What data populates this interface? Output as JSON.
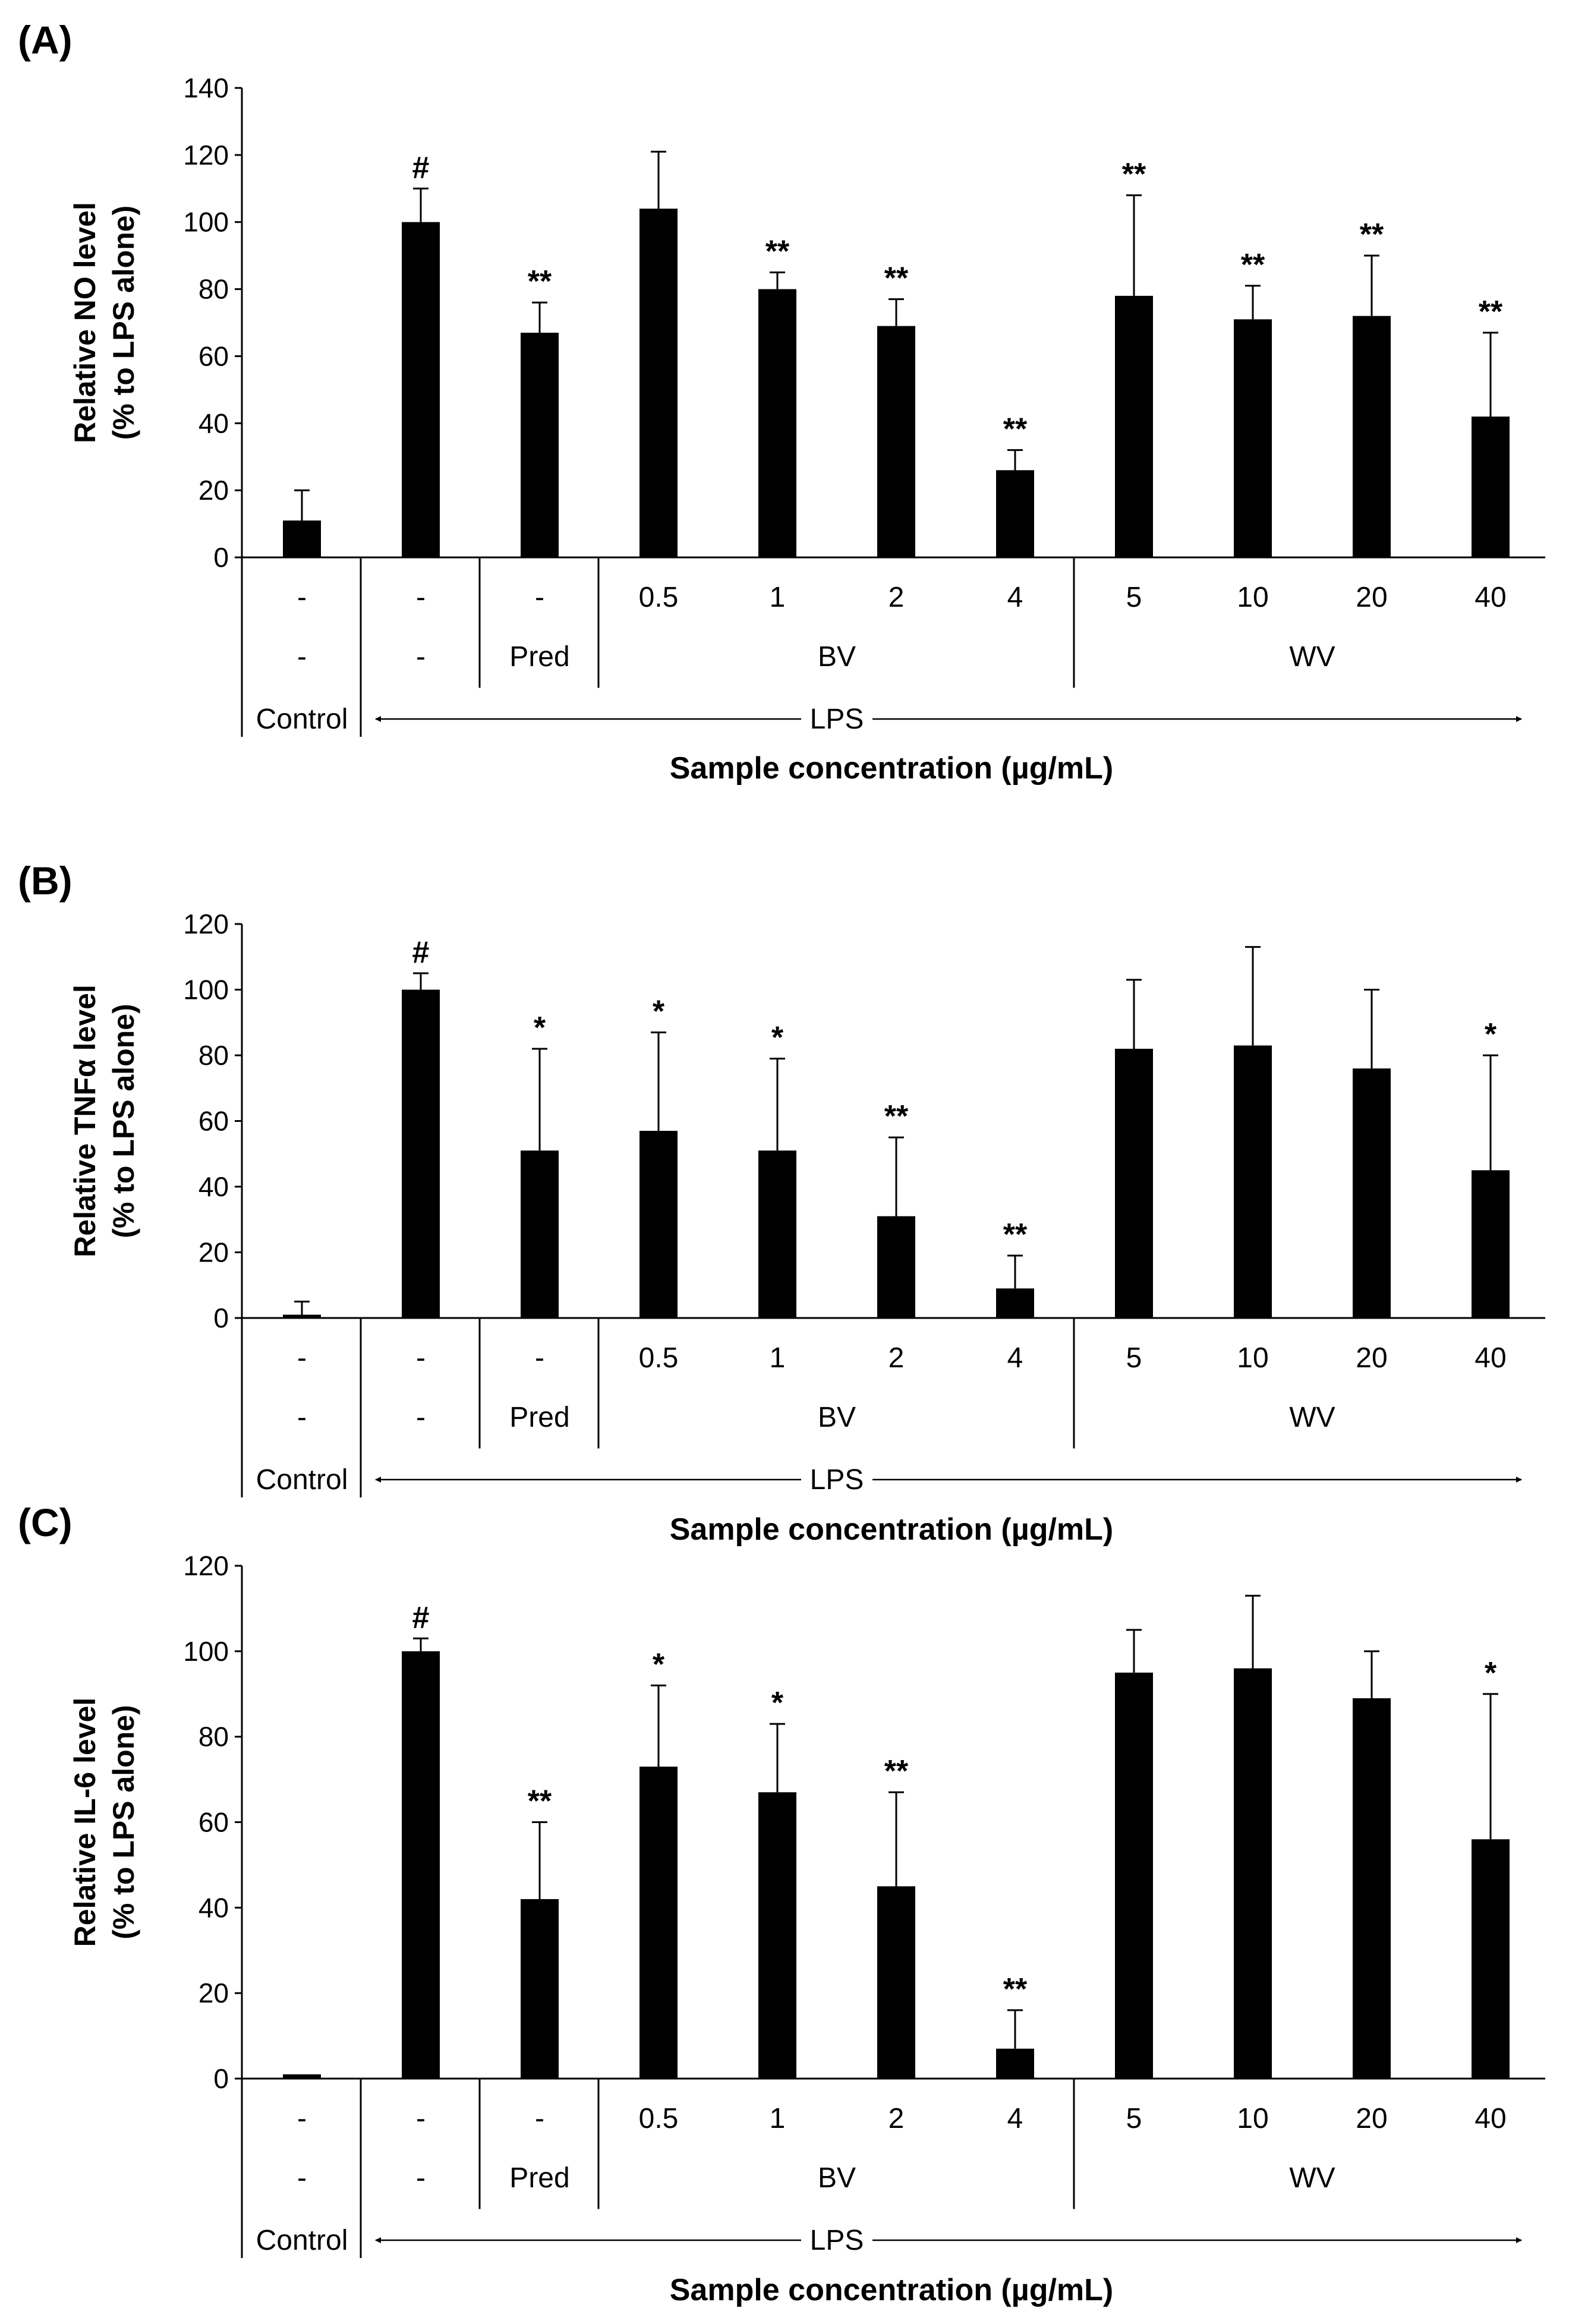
{
  "chart_data": [
    {
      "type": "bar",
      "panel_label": "(A)",
      "ylabel_line1": "Relative NO level",
      "ylabel_line2": "(% to LPS alone)",
      "ylim": [
        0,
        140
      ],
      "yticks": [
        0,
        20,
        40,
        60,
        80,
        100,
        120,
        140
      ],
      "categories": [
        "-",
        "-",
        "-",
        "0.5",
        "1",
        "2",
        "4",
        "5",
        "10",
        "20",
        "40"
      ],
      "values": [
        11,
        100,
        67,
        104,
        80,
        69,
        26,
        78,
        71,
        72,
        42
      ],
      "errors": [
        9,
        10,
        9,
        17,
        5,
        8,
        6,
        30,
        10,
        18,
        25
      ],
      "annotations": [
        "",
        "#",
        "**",
        "",
        "**",
        "**",
        "**",
        "**",
        "**",
        "**",
        "**"
      ],
      "xlabel": "Sample concentration (µg/mL)"
    },
    {
      "type": "bar",
      "panel_label": "(B)",
      "ylabel_line1": "Relative TNFα level",
      "ylabel_line2": "(% to LPS alone)",
      "ylim": [
        0,
        120
      ],
      "yticks": [
        0,
        20,
        40,
        60,
        80,
        100,
        120
      ],
      "categories": [
        "-",
        "-",
        "-",
        "0.5",
        "1",
        "2",
        "4",
        "5",
        "10",
        "20",
        "40"
      ],
      "values": [
        1,
        100,
        51,
        57,
        51,
        31,
        9,
        82,
        83,
        76,
        45
      ],
      "errors": [
        4,
        5,
        31,
        30,
        28,
        24,
        10,
        21,
        30,
        24,
        35
      ],
      "annotations": [
        "",
        "#",
        "*",
        "*",
        "*",
        "**",
        "**",
        "",
        "",
        "",
        "*"
      ],
      "xlabel": "Sample concentration (µg/mL)"
    },
    {
      "type": "bar",
      "panel_label": "(C)",
      "ylabel_line1": "Relative IL-6 level",
      "ylabel_line2": "(% to LPS alone)",
      "ylim": [
        0,
        120
      ],
      "yticks": [
        0,
        20,
        40,
        60,
        80,
        100,
        120
      ],
      "categories": [
        "-",
        "-",
        "-",
        "0.5",
        "1",
        "2",
        "4",
        "5",
        "10",
        "20",
        "40"
      ],
      "values": [
        1,
        100,
        42,
        73,
        67,
        45,
        7,
        95,
        96,
        89,
        56
      ],
      "errors": [
        0,
        3,
        18,
        19,
        16,
        22,
        9,
        10,
        17,
        11,
        34
      ],
      "annotations": [
        "",
        "#",
        "**",
        "*",
        "*",
        "**",
        "**",
        "",
        "",
        "",
        "*"
      ],
      "xlabel": "Sample concentration (µg/mL)"
    }
  ],
  "table": {
    "row2": [
      "-",
      "-",
      "Pred",
      "BV",
      "WV"
    ],
    "control_label": "Control",
    "lps_label": "LPS"
  }
}
